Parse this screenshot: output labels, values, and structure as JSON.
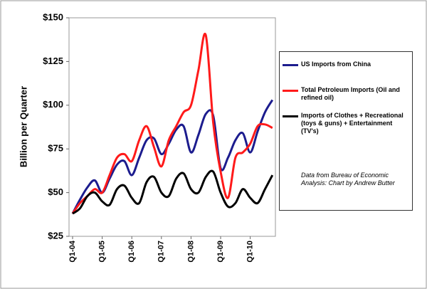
{
  "chart_data": {
    "type": "line",
    "y_label": "Billion per Quarter",
    "categories": [
      "Q1-04",
      null,
      null,
      null,
      "Q1-05",
      null,
      null,
      null,
      "Q1-06",
      null,
      null,
      null,
      "Q1-07",
      null,
      null,
      null,
      "Q1-08",
      null,
      null,
      null,
      "Q1-09",
      null,
      null,
      null,
      "Q1-10",
      null,
      null,
      null
    ],
    "series": [
      {
        "name": "US Imports from China",
        "color": "#1c1c8e",
        "values": [
          38,
          46,
          53,
          57,
          50,
          58,
          66,
          68,
          60,
          70,
          80,
          81,
          72,
          78,
          86,
          88,
          73,
          83,
          95,
          94,
          64,
          70,
          80,
          84,
          73,
          85,
          96,
          103
        ]
      },
      {
        "name": "Total Petroleum Imports (Oil and refined oil)",
        "color": "#ff1a1a",
        "values": [
          38,
          44,
          48,
          52,
          50,
          60,
          70,
          72,
          68,
          80,
          88,
          76,
          65,
          80,
          88,
          96,
          100,
          120,
          140,
          90,
          62,
          47,
          70,
          73,
          78,
          88,
          89,
          87
        ]
      },
      {
        "name": "Imports of Clothes + Recreational (toys & guns) + Entertainment (TV's)",
        "color": "#000000",
        "values": [
          38,
          41,
          48,
          50,
          45,
          43,
          52,
          54,
          47,
          44,
          56,
          59,
          50,
          48,
          58,
          61,
          52,
          50,
          59,
          62,
          50,
          42,
          44,
          52,
          47,
          44,
          52,
          60
        ]
      }
    ],
    "note": "Data from Bureau of Economic Analysis: Chart by Andrew Butter",
    "ylim": [
      25,
      150
    ],
    "yticks": [
      {
        "value": 25,
        "label": "$25"
      },
      {
        "value": 50,
        "label": "$50"
      },
      {
        "value": 75,
        "label": "$75"
      },
      {
        "value": 100,
        "label": "$100"
      },
      {
        "value": 125,
        "label": "$125"
      },
      {
        "value": 150,
        "label": "$150"
      }
    ],
    "grid": false,
    "legend": "right"
  }
}
